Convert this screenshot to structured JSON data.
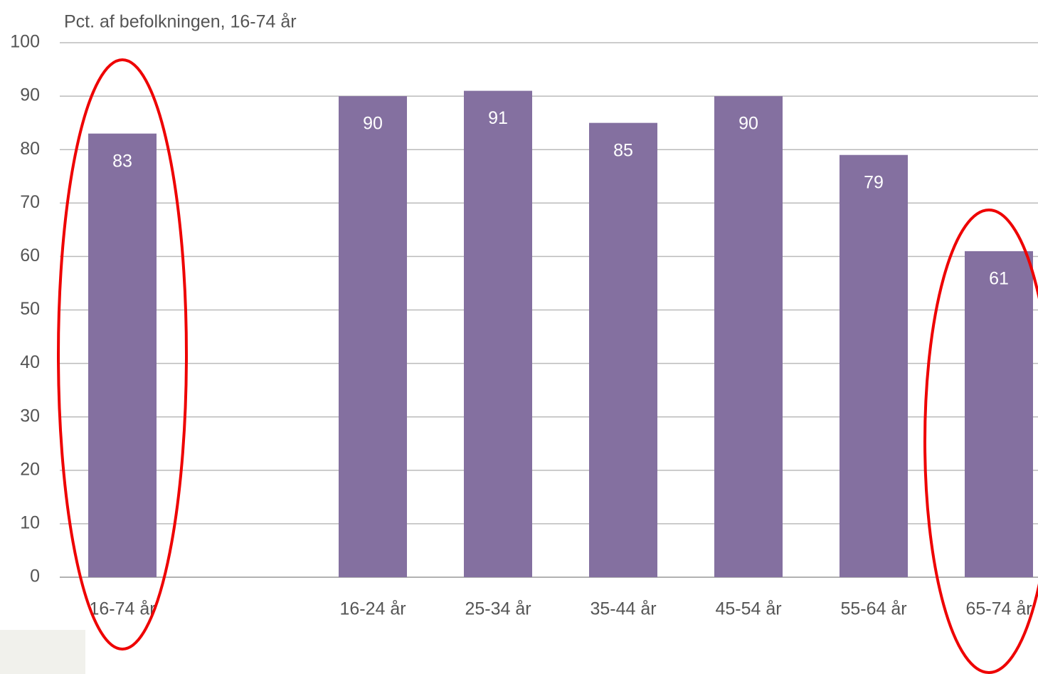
{
  "chart_data": {
    "type": "bar",
    "title": "Pct. af befolkningen, 16-74 år",
    "categories": [
      "16-74 år",
      null,
      "16-24 år",
      "25-34 år",
      "35-44 år",
      "45-54 år",
      "55-64 år",
      "65-74 år"
    ],
    "values": [
      83,
      null,
      90,
      91,
      85,
      90,
      79,
      61
    ],
    "color": "#8470a0",
    "ylim": [
      0,
      100
    ],
    "yticks": [
      0,
      10,
      20,
      30,
      40,
      50,
      60,
      70,
      80,
      90,
      100
    ],
    "grid": true
  }
}
